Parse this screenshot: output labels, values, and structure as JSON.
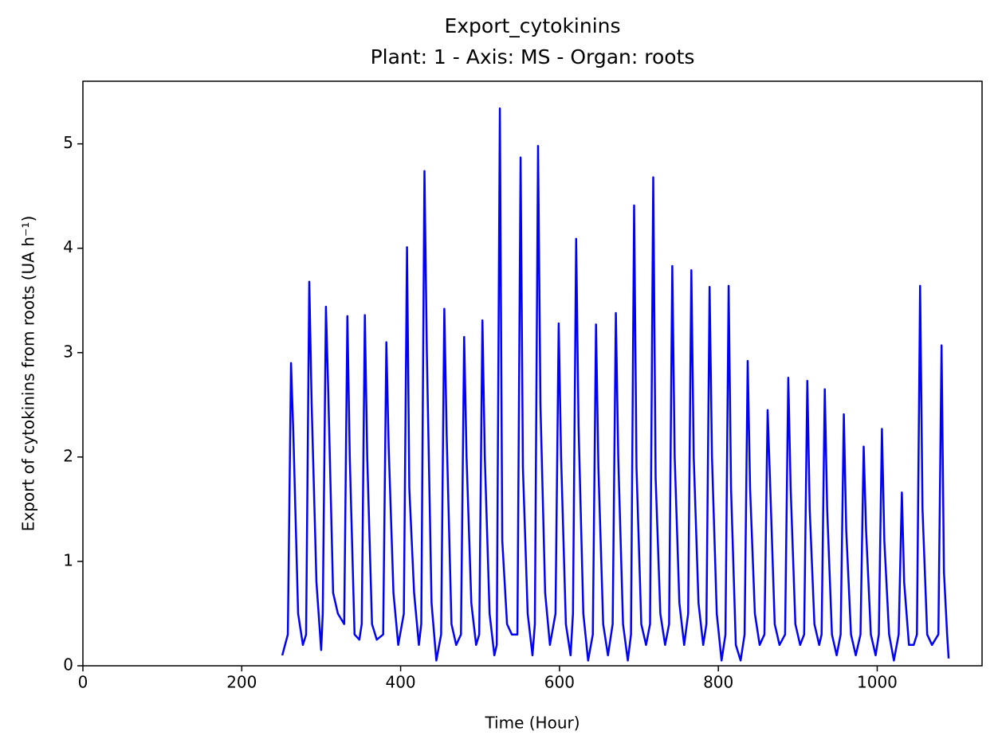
{
  "chart_data": {
    "type": "line",
    "title": "Export_cytokinins",
    "subtitle": "Plant: 1 - Axis: MS - Organ: roots",
    "x_label": "Time (Hour)",
    "y_label": "Export of cytokinins from roots (UA h⁻¹)",
    "xlim": [
      0,
      1132
    ],
    "ylim": [
      0,
      5.6
    ],
    "xticks": [
      0,
      200,
      400,
      600,
      800,
      1000
    ],
    "yticks": [
      0,
      1,
      2,
      3,
      4,
      5
    ],
    "series": [
      {
        "color": "#0000ff",
        "x": [
          251,
          258,
          262,
          265,
          271,
          277,
          281,
          285,
          288,
          294,
          300,
          302,
          306,
          309,
          315,
          321,
          329,
          333,
          336,
          342,
          348,
          351,
          355,
          358,
          364,
          370,
          378,
          382,
          385,
          391,
          397,
          404,
          408,
          411,
          417,
          423,
          426,
          430,
          433,
          439,
          445,
          451,
          455,
          458,
          464,
          470,
          476,
          480,
          483,
          489,
          495,
          499,
          503,
          506,
          512,
          518,
          521,
          525,
          528,
          534,
          540,
          547,
          551,
          554,
          560,
          566,
          569,
          573,
          576,
          582,
          588,
          595,
          599,
          602,
          608,
          614,
          617,
          621,
          624,
          630,
          636,
          642,
          646,
          649,
          655,
          661,
          667,
          671,
          674,
          680,
          686,
          690,
          694,
          697,
          703,
          709,
          714,
          718,
          721,
          727,
          733,
          738,
          742,
          745,
          751,
          757,
          762,
          766,
          769,
          775,
          781,
          785,
          789,
          792,
          798,
          804,
          809,
          813,
          816,
          822,
          828,
          833,
          837,
          840,
          846,
          852,
          858,
          862,
          865,
          871,
          877,
          884,
          888,
          891,
          897,
          903,
          908,
          912,
          915,
          921,
          927,
          930,
          934,
          937,
          943,
          949,
          954,
          958,
          961,
          967,
          973,
          979,
          983,
          986,
          992,
          998,
          1002,
          1006,
          1009,
          1015,
          1021,
          1027,
          1031,
          1034,
          1040,
          1046,
          1050,
          1054,
          1057,
          1063,
          1069,
          1077,
          1081,
          1084,
          1088,
          1090
        ],
        "values": [
          0.1,
          0.3,
          2.9,
          2.2,
          0.5,
          0.2,
          0.3,
          3.68,
          2.5,
          0.8,
          0.15,
          0.5,
          3.44,
          2.6,
          0.7,
          0.5,
          0.4,
          3.35,
          2.0,
          0.3,
          0.25,
          0.4,
          3.36,
          2.0,
          0.4,
          0.25,
          0.3,
          3.1,
          2.1,
          0.7,
          0.2,
          0.5,
          4.01,
          1.7,
          0.7,
          0.2,
          0.4,
          4.74,
          3.0,
          0.6,
          0.05,
          0.3,
          3.42,
          2.2,
          0.4,
          0.2,
          0.3,
          3.15,
          2.0,
          0.6,
          0.2,
          0.3,
          3.31,
          2.0,
          0.5,
          0.1,
          0.2,
          5.34,
          1.2,
          0.4,
          0.3,
          0.3,
          4.87,
          1.9,
          0.5,
          0.1,
          0.4,
          4.98,
          2.5,
          0.7,
          0.2,
          0.5,
          3.28,
          2.0,
          0.4,
          0.1,
          0.5,
          4.09,
          2.3,
          0.5,
          0.05,
          0.3,
          3.27,
          1.9,
          0.4,
          0.1,
          0.4,
          3.38,
          2.0,
          0.4,
          0.05,
          0.3,
          4.41,
          1.9,
          0.4,
          0.2,
          0.4,
          4.68,
          1.8,
          0.5,
          0.2,
          0.4,
          3.83,
          2.0,
          0.6,
          0.2,
          0.5,
          3.79,
          2.0,
          0.6,
          0.2,
          0.4,
          3.63,
          2.0,
          0.5,
          0.05,
          0.3,
          3.64,
          1.7,
          0.2,
          0.05,
          0.3,
          2.92,
          1.7,
          0.5,
          0.2,
          0.3,
          2.45,
          1.8,
          0.4,
          0.2,
          0.3,
          2.76,
          1.7,
          0.4,
          0.2,
          0.3,
          2.73,
          1.5,
          0.4,
          0.2,
          0.3,
          2.65,
          1.5,
          0.3,
          0.1,
          0.3,
          2.41,
          1.3,
          0.3,
          0.1,
          0.3,
          2.1,
          1.3,
          0.3,
          0.1,
          0.3,
          2.27,
          1.2,
          0.3,
          0.05,
          0.3,
          1.66,
          0.8,
          0.2,
          0.2,
          0.3,
          3.64,
          1.5,
          0.3,
          0.2,
          0.3,
          3.07,
          0.9,
          0.3,
          0.07
        ]
      }
    ]
  }
}
